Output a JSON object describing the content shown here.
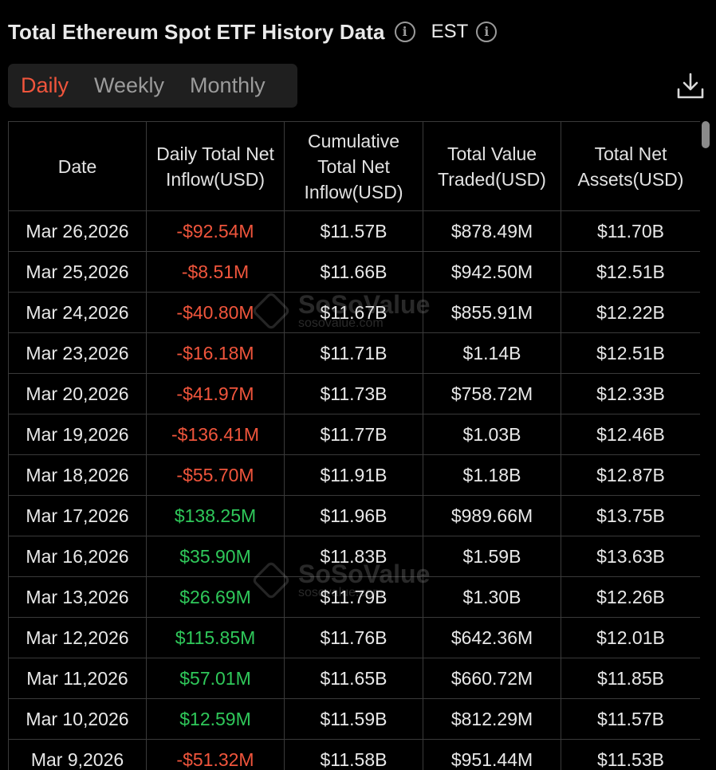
{
  "header": {
    "title": "Total Ethereum Spot ETF History Data",
    "info_icon": "i",
    "timezone": "EST"
  },
  "tabs": [
    {
      "label": "Daily",
      "active": true
    },
    {
      "label": "Weekly",
      "active": false
    },
    {
      "label": "Monthly",
      "active": false
    }
  ],
  "download_icon": "download-icon",
  "table": {
    "columns": [
      "Date",
      "Daily Total Net Inflow(USD)",
      "Cumulative Total Net Inflow(USD)",
      "Total Value Traded(USD)",
      "Total Net Assets(USD)"
    ],
    "rows": [
      {
        "date": "Mar 26,2026",
        "inflow": "-$92.54M",
        "sign": "neg",
        "cumulative": "$11.57B",
        "traded": "$878.49M",
        "assets": "$11.70B"
      },
      {
        "date": "Mar 25,2026",
        "inflow": "-$8.51M",
        "sign": "neg",
        "cumulative": "$11.66B",
        "traded": "$942.50M",
        "assets": "$12.51B"
      },
      {
        "date": "Mar 24,2026",
        "inflow": "-$40.80M",
        "sign": "neg",
        "cumulative": "$11.67B",
        "traded": "$855.91M",
        "assets": "$12.22B"
      },
      {
        "date": "Mar 23,2026",
        "inflow": "-$16.18M",
        "sign": "neg",
        "cumulative": "$11.71B",
        "traded": "$1.14B",
        "assets": "$12.51B"
      },
      {
        "date": "Mar 20,2026",
        "inflow": "-$41.97M",
        "sign": "neg",
        "cumulative": "$11.73B",
        "traded": "$758.72M",
        "assets": "$12.33B"
      },
      {
        "date": "Mar 19,2026",
        "inflow": "-$136.41M",
        "sign": "neg",
        "cumulative": "$11.77B",
        "traded": "$1.03B",
        "assets": "$12.46B"
      },
      {
        "date": "Mar 18,2026",
        "inflow": "-$55.70M",
        "sign": "neg",
        "cumulative": "$11.91B",
        "traded": "$1.18B",
        "assets": "$12.87B"
      },
      {
        "date": "Mar 17,2026",
        "inflow": "$138.25M",
        "sign": "pos",
        "cumulative": "$11.96B",
        "traded": "$989.66M",
        "assets": "$13.75B"
      },
      {
        "date": "Mar 16,2026",
        "inflow": "$35.90M",
        "sign": "pos",
        "cumulative": "$11.83B",
        "traded": "$1.59B",
        "assets": "$13.63B"
      },
      {
        "date": "Mar 13,2026",
        "inflow": "$26.69M",
        "sign": "pos",
        "cumulative": "$11.79B",
        "traded": "$1.30B",
        "assets": "$12.26B"
      },
      {
        "date": "Mar 12,2026",
        "inflow": "$115.85M",
        "sign": "pos",
        "cumulative": "$11.76B",
        "traded": "$642.36M",
        "assets": "$12.01B"
      },
      {
        "date": "Mar 11,2026",
        "inflow": "$57.01M",
        "sign": "pos",
        "cumulative": "$11.65B",
        "traded": "$660.72M",
        "assets": "$11.85B"
      },
      {
        "date": "Mar 10,2026",
        "inflow": "$12.59M",
        "sign": "pos",
        "cumulative": "$11.59B",
        "traded": "$812.29M",
        "assets": "$11.57B"
      },
      {
        "date": "Mar 9,2026",
        "inflow": "-$51.32M",
        "sign": "neg",
        "cumulative": "$11.58B",
        "traded": "$951.44M",
        "assets": "$11.53B"
      }
    ]
  },
  "watermark": {
    "name": "SoSoValue",
    "url": "sosovalue.com"
  },
  "colors": {
    "negative": "#f0553c",
    "positive": "#2fc85a",
    "active_tab": "#f0553c",
    "background": "#000000"
  }
}
